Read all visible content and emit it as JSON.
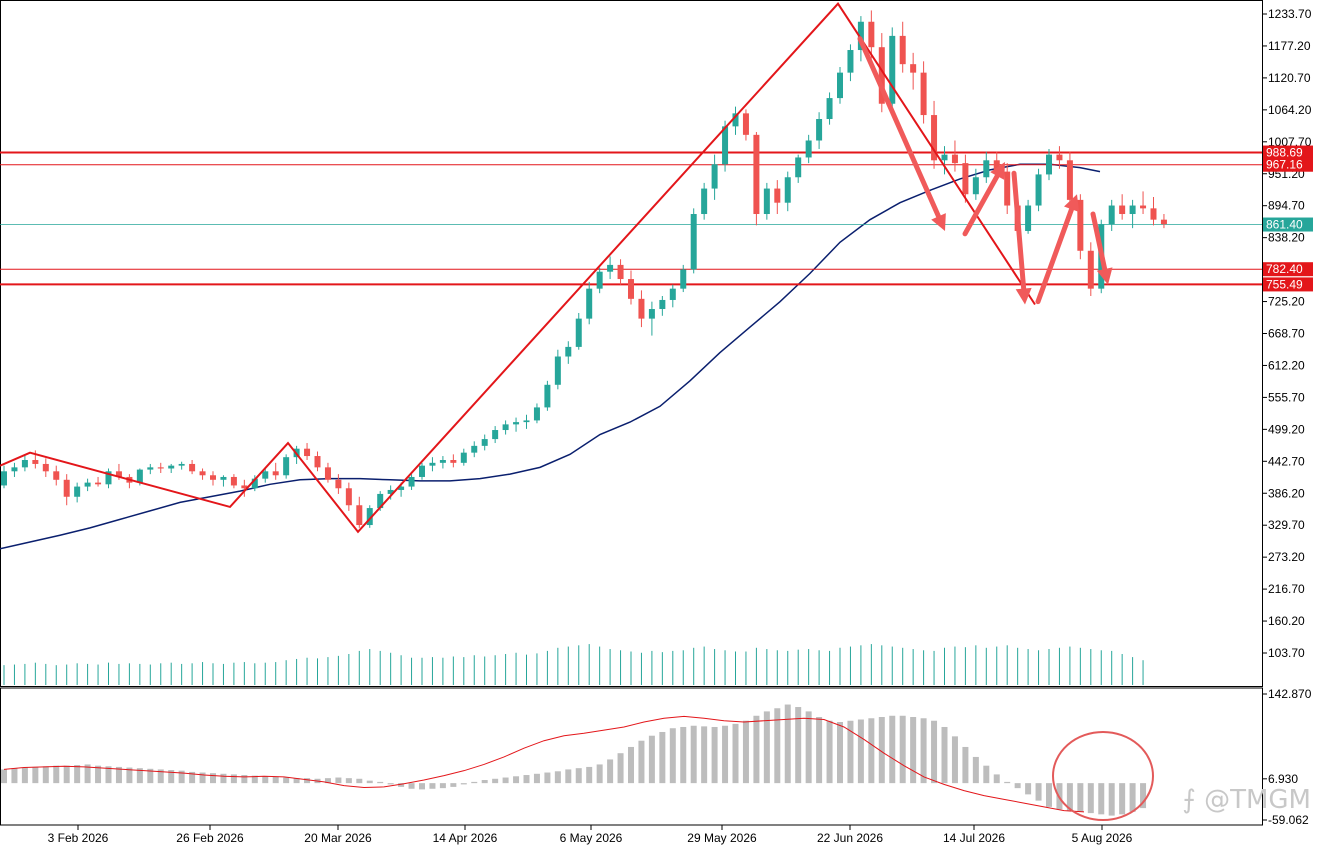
{
  "chart_data": {
    "type": "candlestick",
    "main": {
      "y_range": [
        105,
        1250
      ],
      "y_ticks": [
        "1233.70",
        "1177.20",
        "1120.70",
        "1064.20",
        "1007.70",
        "951.20",
        "894.70",
        "838.20",
        "782.40",
        "725.20",
        "668.70",
        "612.20",
        "555.70",
        "499.20",
        "442.70",
        "386.20",
        "329.70",
        "273.20",
        "216.70",
        "160.20",
        "103.70"
      ],
      "ohlc": [
        [
          400,
          435,
          395,
          425
        ],
        [
          425,
          440,
          415,
          432
        ],
        [
          432,
          455,
          425,
          445
        ],
        [
          445,
          462,
          430,
          438
        ],
        [
          438,
          448,
          415,
          425
        ],
        [
          425,
          435,
          400,
          410
        ],
        [
          410,
          420,
          365,
          380
        ],
        [
          380,
          405,
          370,
          398
        ],
        [
          398,
          412,
          390,
          405
        ],
        [
          405,
          415,
          398,
          402
        ],
        [
          402,
          430,
          395,
          425
        ],
        [
          425,
          438,
          410,
          415
        ],
        [
          415,
          420,
          395,
          405
        ],
        [
          405,
          430,
          400,
          428
        ],
        [
          428,
          438,
          420,
          432
        ],
        [
          432,
          440,
          422,
          430
        ],
        [
          430,
          438,
          422,
          435
        ],
        [
          435,
          442,
          428,
          438
        ],
        [
          438,
          445,
          420,
          425
        ],
        [
          425,
          430,
          410,
          418
        ],
        [
          418,
          425,
          400,
          410
        ],
        [
          410,
          418,
          398,
          415
        ],
        [
          415,
          420,
          395,
          400
        ],
        [
          400,
          410,
          380,
          395
        ],
        [
          395,
          418,
          390,
          412
        ],
        [
          412,
          430,
          405,
          425
        ],
        [
          425,
          440,
          410,
          418
        ],
        [
          418,
          455,
          412,
          450
        ],
        [
          450,
          470,
          438,
          465
        ],
        [
          465,
          475,
          445,
          452
        ],
        [
          452,
          460,
          425,
          432
        ],
        [
          432,
          440,
          405,
          410
        ],
        [
          410,
          420,
          385,
          395
        ],
        [
          395,
          405,
          355,
          365
        ],
        [
          365,
          380,
          325,
          330
        ],
        [
          330,
          365,
          325,
          360
        ],
        [
          360,
          390,
          355,
          385
        ],
        [
          385,
          400,
          375,
          392
        ],
        [
          392,
          405,
          380,
          398
        ],
        [
          398,
          420,
          392,
          415
        ],
        [
          415,
          440,
          410,
          435
        ],
        [
          435,
          450,
          425,
          440
        ],
        [
          440,
          452,
          430,
          445
        ],
        [
          445,
          455,
          432,
          440
        ],
        [
          440,
          465,
          435,
          458
        ],
        [
          458,
          478,
          450,
          470
        ],
        [
          470,
          490,
          462,
          482
        ],
        [
          482,
          505,
          475,
          498
        ],
        [
          498,
          515,
          490,
          508
        ],
        [
          508,
          520,
          495,
          512
        ],
        [
          512,
          525,
          500,
          515
        ],
        [
          515,
          545,
          510,
          538
        ],
        [
          538,
          585,
          532,
          578
        ],
        [
          578,
          640,
          570,
          628
        ],
        [
          628,
          655,
          615,
          645
        ],
        [
          645,
          705,
          640,
          695
        ],
        [
          695,
          760,
          685,
          748
        ],
        [
          748,
          785,
          740,
          778
        ],
        [
          778,
          805,
          765,
          790
        ],
        [
          790,
          800,
          755,
          765
        ],
        [
          765,
          780,
          720,
          730
        ],
        [
          730,
          745,
          680,
          695
        ],
        [
          695,
          725,
          665,
          712
        ],
        [
          712,
          735,
          700,
          728
        ],
        [
          728,
          755,
          715,
          748
        ],
        [
          748,
          790,
          742,
          782
        ],
        [
          782,
          890,
          775,
          880
        ],
        [
          880,
          935,
          870,
          925
        ],
        [
          925,
          985,
          905,
          968
        ],
        [
          968,
          1045,
          955,
          1035
        ],
        [
          1035,
          1070,
          1020,
          1058
        ],
        [
          1058,
          1065,
          1010,
          1020
        ],
        [
          1020,
          1025,
          860,
          880
        ],
        [
          880,
          935,
          870,
          925
        ],
        [
          925,
          940,
          880,
          900
        ],
        [
          900,
          955,
          885,
          945
        ],
        [
          945,
          985,
          935,
          980
        ],
        [
          980,
          1020,
          970,
          1010
        ],
        [
          1010,
          1060,
          995,
          1048
        ],
        [
          1048,
          1095,
          1038,
          1085
        ],
        [
          1085,
          1140,
          1075,
          1130
        ],
        [
          1130,
          1180,
          1115,
          1170
        ],
        [
          1170,
          1230,
          1150,
          1220
        ],
        [
          1220,
          1240,
          1155,
          1175
        ],
        [
          1175,
          1200,
          1060,
          1075
        ],
        [
          1075,
          1210,
          1060,
          1195
        ],
        [
          1195,
          1220,
          1130,
          1145
        ],
        [
          1145,
          1165,
          1100,
          1130
        ],
        [
          1130,
          1150,
          1040,
          1055
        ],
        [
          1055,
          1080,
          960,
          975
        ],
        [
          975,
          1000,
          950,
          985
        ],
        [
          985,
          1010,
          955,
          970
        ],
        [
          970,
          985,
          900,
          915
        ],
        [
          915,
          960,
          905,
          945
        ],
        [
          945,
          990,
          935,
          975
        ],
        [
          975,
          990,
          940,
          955
        ],
        [
          955,
          970,
          880,
          895
        ],
        [
          895,
          905,
          840,
          850
        ],
        [
          850,
          905,
          845,
          895
        ],
        [
          895,
          960,
          885,
          950
        ],
        [
          950,
          995,
          940,
          985
        ],
        [
          985,
          1000,
          960,
          975
        ],
        [
          975,
          990,
          890,
          905
        ],
        [
          905,
          915,
          800,
          815
        ],
        [
          815,
          830,
          735,
          748
        ],
        [
          748,
          870,
          740,
          862
        ],
        [
          862,
          905,
          850,
          895
        ],
        [
          895,
          915,
          870,
          880
        ],
        [
          880,
          905,
          855,
          895
        ],
        [
          895,
          920,
          880,
          890
        ],
        [
          890,
          910,
          860,
          870
        ],
        [
          870,
          880,
          855,
          862
        ]
      ],
      "ma": [
        [
          0,
          288
        ],
        [
          30,
          300
        ],
        [
          60,
          312
        ],
        [
          90,
          325
        ],
        [
          120,
          340
        ],
        [
          150,
          355
        ],
        [
          180,
          370
        ],
        [
          210,
          380
        ],
        [
          240,
          390
        ],
        [
          270,
          402
        ],
        [
          300,
          410
        ],
        [
          330,
          412
        ],
        [
          360,
          412
        ],
        [
          390,
          410
        ],
        [
          420,
          408
        ],
        [
          450,
          408
        ],
        [
          480,
          412
        ],
        [
          510,
          420
        ],
        [
          540,
          432
        ],
        [
          570,
          455
        ],
        [
          600,
          490
        ],
        [
          630,
          512
        ],
        [
          660,
          540
        ],
        [
          690,
          585
        ],
        [
          720,
          635
        ],
        [
          750,
          680
        ],
        [
          780,
          725
        ],
        [
          810,
          775
        ],
        [
          840,
          830
        ],
        [
          870,
          870
        ],
        [
          900,
          900
        ],
        [
          930,
          922
        ],
        [
          960,
          942
        ],
        [
          990,
          958
        ],
        [
          1020,
          968
        ],
        [
          1050,
          968
        ],
        [
          1080,
          962
        ],
        [
          1100,
          955
        ]
      ],
      "hlines": [
        {
          "value": 988.69,
          "label": "988.69",
          "width": 2
        },
        {
          "value": 967.16,
          "label": "967.16",
          "width": 1
        },
        {
          "value": 782.4,
          "label": "782.40",
          "width": 1
        },
        {
          "value": 755.49,
          "label": "755.49",
          "width": 2
        }
      ],
      "current": {
        "value": 861.4,
        "label": "861.40"
      },
      "zigzag": [
        [
          0,
          435
        ],
        [
          30,
          458
        ],
        [
          230,
          362
        ],
        [
          288,
          475
        ],
        [
          358,
          318
        ],
        [
          838,
          1252
        ],
        [
          1035,
          720
        ]
      ],
      "arrows": [
        [
          [
            860,
            1190
          ],
          [
            945,
            850
          ]
        ],
        [
          [
            965,
            845
          ],
          [
            1005,
            972
          ]
        ],
        [
          [
            1014,
            952
          ],
          [
            1025,
            720
          ]
        ],
        [
          [
            1038,
            725
          ],
          [
            1077,
            915
          ]
        ],
        [
          [
            1093,
            880
          ],
          [
            1108,
            755
          ]
        ]
      ]
    },
    "volume": [
      32,
      33,
      34,
      36,
      34,
      32,
      33,
      35,
      34,
      33,
      36,
      34,
      35,
      34,
      33,
      35,
      36,
      34,
      35,
      37,
      35,
      34,
      36,
      37,
      35,
      36,
      37,
      40,
      42,
      44,
      43,
      45,
      47,
      50,
      55,
      58,
      55,
      52,
      48,
      44,
      44,
      45,
      44,
      46,
      45,
      48,
      46,
      48,
      50,
      52,
      49,
      51,
      55,
      60,
      62,
      64,
      66,
      62,
      58,
      56,
      54,
      52,
      55,
      53,
      55,
      56,
      60,
      62,
      58,
      56,
      54,
      54,
      60,
      58,
      56,
      55,
      57,
      58,
      56,
      55,
      60,
      62,
      64,
      66,
      64,
      62,
      60,
      58,
      56,
      55,
      60,
      62,
      61,
      64,
      60,
      62,
      64,
      60,
      58,
      56,
      58,
      60,
      62,
      60,
      58,
      56,
      55,
      50,
      45,
      40
    ],
    "macd": {
      "y_range": [
        -59.062,
        142.87
      ],
      "y_ticks": [
        "142.870",
        "6.930",
        "-59.062"
      ],
      "bars": [
        22,
        24,
        25,
        26,
        27,
        28,
        28,
        29,
        30,
        28,
        27,
        26,
        25,
        24,
        23,
        22,
        21,
        20,
        18,
        17,
        16,
        15,
        14,
        13,
        12,
        11,
        10,
        9,
        8,
        8,
        7,
        8,
        9,
        8,
        7,
        4,
        2,
        -2,
        -6,
        -9,
        -10,
        -9,
        -8,
        -6,
        -2,
        2,
        5,
        7,
        9,
        11,
        13,
        15,
        17,
        19,
        22,
        24,
        26,
        30,
        38,
        48,
        58,
        68,
        76,
        82,
        88,
        90,
        92,
        91,
        90,
        92,
        95,
        100,
        108,
        115,
        120,
        126,
        122,
        115,
        106,
        100,
        98,
        100,
        102,
        104,
        106,
        108,
        108,
        106,
        104,
        100,
        90,
        75,
        58,
        42,
        28,
        14,
        2,
        -8,
        -18,
        -28,
        -38,
        -42,
        -44,
        -46,
        -48,
        -50,
        -52,
        -50,
        -46,
        -40
      ],
      "signal": [
        22,
        25,
        26,
        27,
        26,
        24,
        22,
        20,
        18,
        16,
        13,
        11,
        10,
        11,
        10,
        6,
        2,
        -4,
        -7,
        -6,
        -1,
        5,
        12,
        20,
        30,
        42,
        56,
        68,
        76,
        80,
        85,
        90,
        98,
        104,
        107,
        104,
        100,
        98,
        100,
        102,
        104,
        102,
        90,
        70,
        48,
        28,
        10,
        -2,
        -12,
        -20,
        -26,
        -32,
        -38,
        -44,
        -46
      ]
    },
    "x_labels": [
      "3 Feb 2026",
      "26 Feb 2026",
      "20 Mar 2026",
      "14 Apr 2026",
      "6 May 2026",
      "29 May 2026",
      "22 Jun 2026",
      "14 Jul 2026",
      "5 Aug 2026"
    ],
    "colors": {
      "bull": "#26a69a",
      "bear": "#ef5350",
      "ma": "#0a1f6e",
      "level": "#e3161a",
      "current": "#26a69a",
      "volume": "#26a69a",
      "macd_bar": "#bdbdbd",
      "signal": "#e3161a",
      "arrow": "#f05a5a"
    }
  },
  "watermark": "⨍ @TMGM"
}
